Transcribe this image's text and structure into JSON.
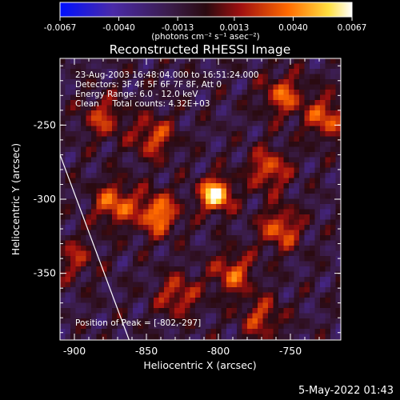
{
  "chart_data": {
    "type": "heatmap",
    "title": "Reconstructed RHESSI Image",
    "xlabel": "Heliocentric X (arcsec)",
    "ylabel": "Heliocentric Y (arcsec)",
    "xlim": [
      -910,
      -715
    ],
    "ylim": [
      -395,
      -205
    ],
    "xticks": [
      -900,
      -850,
      -800,
      -750
    ],
    "yticks": [
      -250,
      -300,
      -350
    ],
    "xtick_labels": [
      "-900",
      "-850",
      "-800",
      "-750"
    ],
    "ytick_labels": [
      "-250",
      "-300",
      "-350"
    ],
    "colorbar": {
      "range": [
        -0.0067,
        0.0067
      ],
      "ticks": [
        -0.0067,
        -0.004,
        -0.0013,
        0.0013,
        0.004,
        0.0067
      ],
      "tick_labels": [
        "-0.0067",
        "-0.0040",
        "-0.0013",
        "0.0013",
        "0.0040",
        "0.0067"
      ],
      "units": "(photons cm⁻² s⁻¹ asec⁻²)"
    },
    "annotations": [
      "23-Aug-2003 16:48:04.000 to 16:51:24.000",
      "Detectors: 3F 4F 5F 6F 7F 8F, Att 0",
      "Energy Range: 6.0 - 12.0 keV",
      "Clean     Total counts: 4.32E+03"
    ],
    "peak_text": "Position of Peak = [-802,-297]",
    "peak": {
      "x": -802,
      "y": -297,
      "value": 0.0067
    },
    "sources": [
      {
        "x": -802,
        "y": -297,
        "value": 0.0067
      },
      {
        "x": -842,
        "y": -310,
        "value": 0.0042
      },
      {
        "x": -872,
        "y": -303,
        "value": 0.0035
      },
      {
        "x": -757,
        "y": -320,
        "value": 0.0032
      },
      {
        "x": -765,
        "y": -280,
        "value": 0.003
      },
      {
        "x": -845,
        "y": -258,
        "value": 0.0028
      },
      {
        "x": -790,
        "y": -350,
        "value": 0.003
      },
      {
        "x": -725,
        "y": -245,
        "value": 0.0032
      },
      {
        "x": -755,
        "y": -230,
        "value": 0.003
      },
      {
        "x": -880,
        "y": -245,
        "value": 0.0022
      },
      {
        "x": -828,
        "y": -365,
        "value": 0.0025
      },
      {
        "x": -770,
        "y": -380,
        "value": 0.0022
      },
      {
        "x": -900,
        "y": -340,
        "value": 0.0015
      }
    ],
    "limb_line": [
      [
        -910,
        -270
      ],
      [
        -862,
        -395
      ]
    ],
    "grid": false
  },
  "footer": {
    "timestamp": "5-May-2022 01:43"
  },
  "colors": {
    "background": "#000000",
    "axis": "#ffffff",
    "limb": "#ffffff",
    "colormap": [
      "#0000ff",
      "#5a3aa0",
      "#3a2240",
      "#8a1010",
      "#ff5a00",
      "#ffff60",
      "#ffffff"
    ]
  }
}
